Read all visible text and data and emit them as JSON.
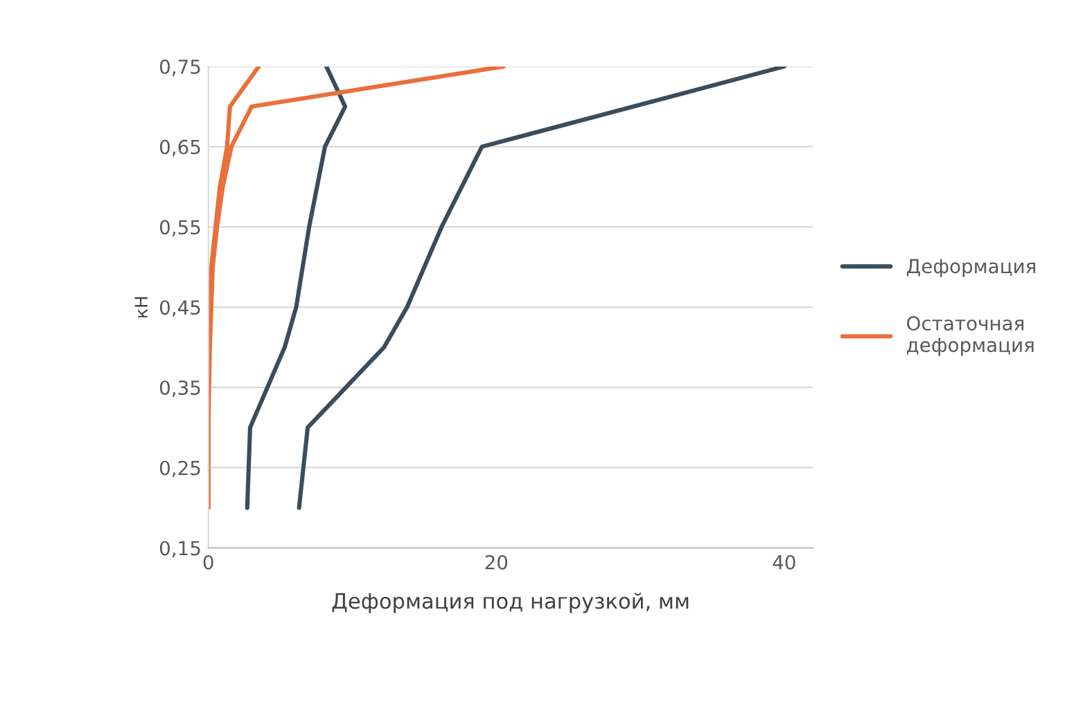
{
  "chart_data": {
    "type": "line",
    "xlabel": "Деформация под нагрузкой, мм",
    "ylabel": "кН",
    "xlim": [
      0,
      42
    ],
    "xticks": [
      0,
      20,
      40
    ],
    "ylim": [
      0.15,
      0.75
    ],
    "yticks": [
      {
        "value": 0.15,
        "label": "0,15"
      },
      {
        "value": 0.25,
        "label": "0,25"
      },
      {
        "value": 0.35,
        "label": "0,35"
      },
      {
        "value": 0.45,
        "label": "0,45"
      },
      {
        "value": 0.55,
        "label": "0,55"
      },
      {
        "value": 0.65,
        "label": "0,65"
      },
      {
        "value": 0.75,
        "label": "0,75"
      }
    ],
    "grid": "y",
    "legend": "right",
    "marker": "none",
    "line_style": "solid",
    "series": [
      {
        "name": "Деформация",
        "color": "#3b4d5c",
        "x": [
          2.7,
          2.9,
          5.3,
          6.1,
          7.0,
          8.1,
          9.5,
          8.2
        ],
        "values": [
          0.2,
          0.3,
          0.4,
          0.45,
          0.55,
          0.65,
          0.7,
          0.75
        ]
      },
      {
        "color": "#3b4d5c",
        "x": [
          6.3,
          6.9,
          12.2,
          13.8,
          16.2,
          19.0,
          40
        ],
        "values": [
          0.2,
          0.3,
          0.4,
          0.45,
          0.55,
          0.65,
          0.75
        ]
      },
      {
        "name": "Остаточная\nдеформация",
        "color": "#e8703a",
        "x": [
          0,
          0,
          0,
          0.2,
          0.5,
          0.8,
          1.3,
          1.5,
          3.5
        ],
        "values": [
          0.2,
          0.3,
          0.4,
          0.5,
          0.55,
          0.6,
          0.65,
          0.7,
          0.75
        ]
      },
      {
        "color": "#e8703a",
        "x": [
          0,
          0,
          0.1,
          0.3,
          0.6,
          1.0,
          1.6,
          3.0,
          20.5
        ],
        "values": [
          0.2,
          0.3,
          0.4,
          0.5,
          0.55,
          0.6,
          0.65,
          0.7,
          0.75
        ]
      }
    ]
  }
}
